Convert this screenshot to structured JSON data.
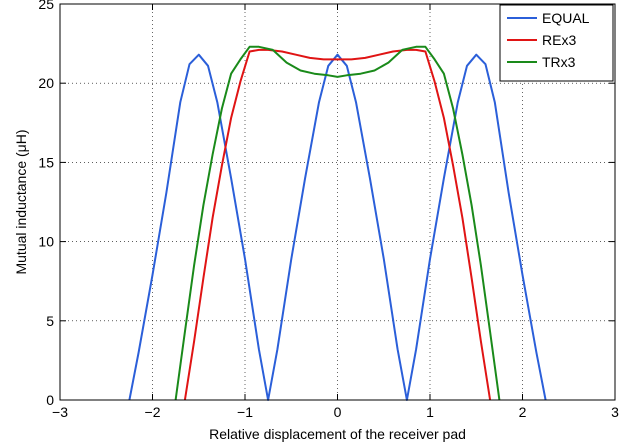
{
  "chart_data": {
    "type": "line",
    "title": "",
    "xlabel": "Relative displacement of the receiver pad",
    "ylabel": "Mutual inductance (μH)",
    "xlim": [
      -3,
      3
    ],
    "ylim": [
      0,
      25
    ],
    "xticks": [
      -3,
      -2,
      -1,
      0,
      1,
      2,
      3
    ],
    "yticks": [
      0,
      5,
      10,
      15,
      20,
      25
    ],
    "grid": true,
    "legend_position": "top-right",
    "series": [
      {
        "name": "EQUAL",
        "color": "#2b5fd9",
        "x": [
          -2.25,
          -2.15,
          -2.0,
          -1.85,
          -1.7,
          -1.6,
          -1.5,
          -1.4,
          -1.3,
          -1.15,
          -1.0,
          -0.85,
          -0.75,
          -0.65,
          -0.5,
          -0.35,
          -0.2,
          -0.1,
          0.0,
          0.1,
          0.2,
          0.35,
          0.5,
          0.65,
          0.75,
          0.85,
          1.0,
          1.15,
          1.3,
          1.4,
          1.5,
          1.6,
          1.7,
          1.85,
          2.0,
          2.15,
          2.25
        ],
        "y": [
          0.0,
          3.0,
          7.9,
          13.1,
          18.8,
          21.2,
          21.8,
          21.1,
          18.8,
          14.0,
          8.9,
          3.2,
          0.0,
          3.2,
          8.9,
          14.0,
          18.8,
          21.1,
          21.8,
          21.1,
          18.8,
          14.0,
          8.9,
          3.2,
          0.0,
          3.2,
          8.9,
          14.0,
          18.8,
          21.1,
          21.8,
          21.2,
          18.8,
          13.1,
          7.9,
          3.0,
          0.0
        ]
      },
      {
        "name": "REx3",
        "color": "#e01414",
        "x": [
          -1.65,
          -1.55,
          -1.45,
          -1.35,
          -1.25,
          -1.15,
          -1.05,
          -0.95,
          -0.85,
          -0.75,
          -0.6,
          -0.45,
          -0.3,
          -0.15,
          0.0,
          0.15,
          0.3,
          0.45,
          0.6,
          0.75,
          0.85,
          0.95,
          1.05,
          1.15,
          1.25,
          1.35,
          1.45,
          1.55,
          1.65
        ],
        "y": [
          0.0,
          3.7,
          7.7,
          11.5,
          14.8,
          17.8,
          20.1,
          22.0,
          22.1,
          22.1,
          22.0,
          21.8,
          21.6,
          21.5,
          21.5,
          21.5,
          21.6,
          21.8,
          22.0,
          22.1,
          22.1,
          22.0,
          20.1,
          17.8,
          14.8,
          11.5,
          7.7,
          3.7,
          0.0
        ]
      },
      {
        "name": "TRx3",
        "color": "#1a8a1a",
        "x": [
          -1.75,
          -1.65,
          -1.55,
          -1.45,
          -1.35,
          -1.25,
          -1.15,
          -1.05,
          -0.95,
          -0.85,
          -0.7,
          -0.55,
          -0.4,
          -0.25,
          -0.1,
          0.0,
          0.1,
          0.25,
          0.4,
          0.55,
          0.7,
          0.85,
          0.95,
          1.05,
          1.15,
          1.25,
          1.35,
          1.45,
          1.55,
          1.65,
          1.75
        ],
        "y": [
          0.0,
          4.3,
          8.5,
          12.3,
          15.5,
          18.4,
          20.6,
          21.5,
          22.3,
          22.3,
          22.1,
          21.3,
          20.8,
          20.6,
          20.5,
          20.4,
          20.5,
          20.6,
          20.8,
          21.3,
          22.1,
          22.3,
          22.3,
          21.5,
          20.6,
          18.4,
          15.5,
          12.3,
          8.5,
          4.3,
          0.0
        ]
      }
    ]
  }
}
